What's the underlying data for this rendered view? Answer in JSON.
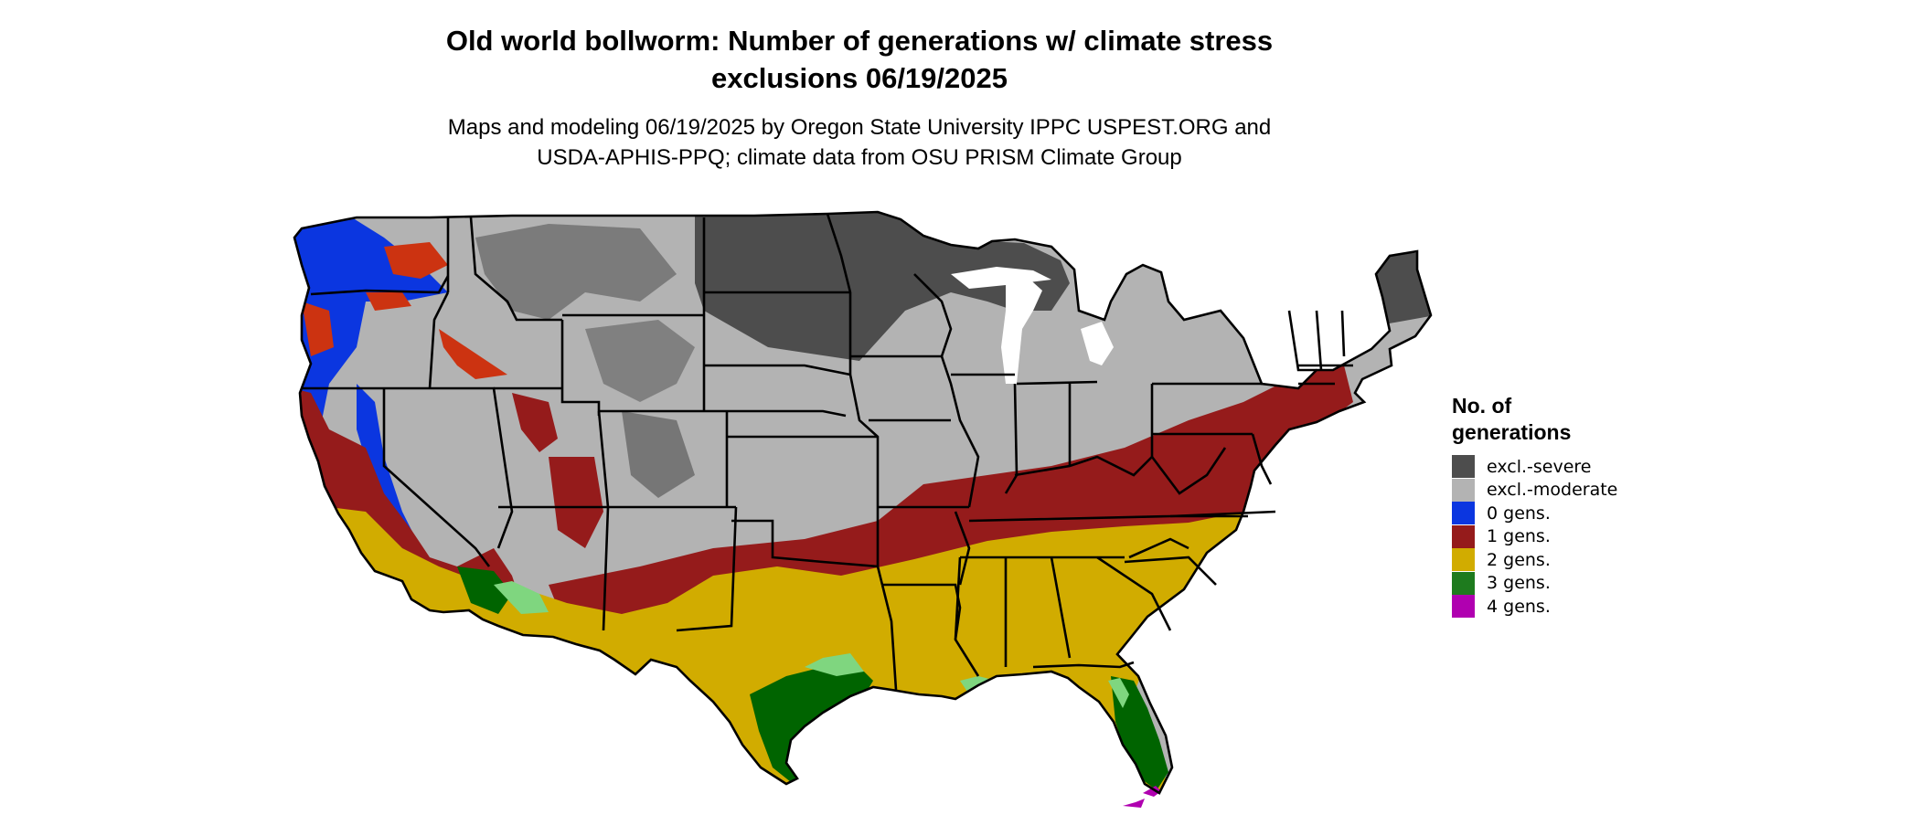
{
  "title_line1": "Old world bollworm: Number of generations w/ climate stress",
  "title_line2": "exclusions 06/19/2025",
  "subtitle_line1": "Maps and modeling 06/19/2025 by Oregon State University IPPC USPEST.ORG and",
  "subtitle_line2": "USDA-APHIS-PPQ; climate data from OSU PRISM Climate Group",
  "legend": {
    "title_line1": "No. of",
    "title_line2": "generations",
    "items": [
      {
        "label": "excl.-severe",
        "color": "#4d4d4d"
      },
      {
        "label": "excl.-moderate",
        "color": "#b3b3b3"
      },
      {
        "label": "0 gens.",
        "color": "#0b36e0"
      },
      {
        "label": "1 gens.",
        "color": "#951b1b"
      },
      {
        "label": "2 gens.",
        "color": "#d1ac00"
      },
      {
        "label": "3 gens.",
        "color": "#1e7b1e"
      },
      {
        "label": "4 gens.",
        "color": "#b000b0"
      }
    ]
  },
  "map_colors": {
    "severe": "#4d4d4d",
    "moderate": "#b3b3b3",
    "gen0": "#0b36e0",
    "gen1": "#951b1b",
    "gen2": "#d1ac00",
    "gen3": "#006400",
    "gen3_light": "#7fd67f",
    "gen4": "#b000b0",
    "red_orange": "#cc3311"
  }
}
